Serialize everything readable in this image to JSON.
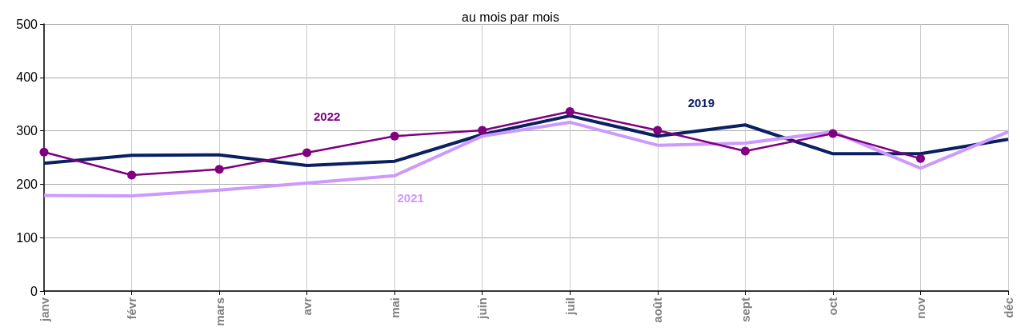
{
  "chart_data": {
    "type": "line",
    "title": "au mois par mois",
    "categories": [
      "janv",
      "févr",
      "mars",
      "avr",
      "mai",
      "juin",
      "juil",
      "août",
      "sept",
      "oct",
      "nov",
      "déc"
    ],
    "ylim": [
      0,
      500
    ],
    "yticks": [
      0,
      100,
      200,
      300,
      400,
      500
    ],
    "grid": true,
    "legend": false,
    "series": [
      {
        "name": "2019",
        "color": "#0a2060",
        "marker": "none",
        "values": [
          239,
          254,
          255,
          235,
          243,
          293,
          328,
          290,
          311,
          257,
          257,
          284
        ]
      },
      {
        "name": "2021",
        "color": "#cc99ff",
        "marker": "none",
        "values": [
          179,
          178,
          189,
          202,
          216,
          290,
          316,
          273,
          277,
          298,
          230,
          298
        ]
      },
      {
        "name": "2022",
        "color": "#800080",
        "marker": "circle",
        "values": [
          260,
          217,
          228,
          259,
          290,
          301,
          336,
          301,
          262,
          295,
          248,
          null
        ]
      }
    ]
  }
}
